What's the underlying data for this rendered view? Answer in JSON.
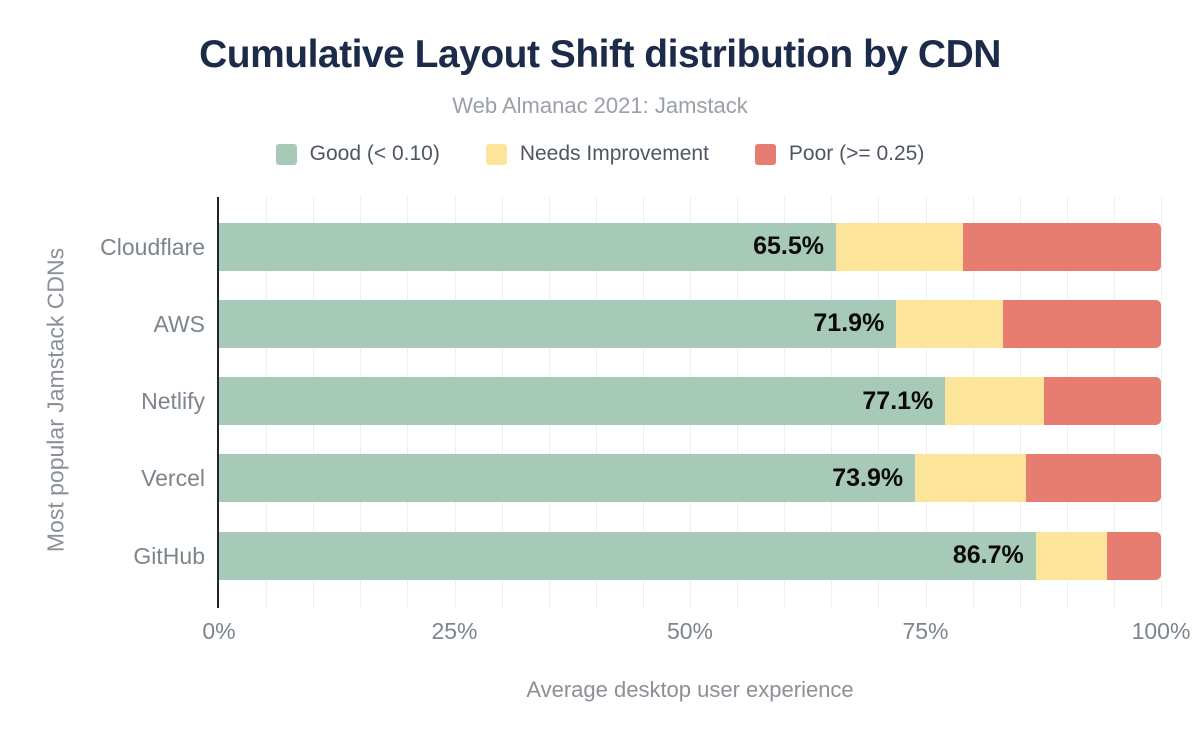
{
  "title": "Cumulative Layout Shift distribution by CDN",
  "subtitle": "Web Almanac 2021: Jamstack",
  "legend": [
    {
      "label": "Good (< 0.10)",
      "color": "#a6c9b8"
    },
    {
      "label": "Needs Improvement",
      "color": "#fce49a"
    },
    {
      "label": "Poor (>= 0.25)",
      "color": "#e77c70"
    }
  ],
  "colors": {
    "good": "#a6c9b8",
    "needs_improvement": "#fce49a",
    "poor": "#e77c70",
    "title": "#1c2b4a",
    "subtitle": "#9aa0a6",
    "axis_text": "#7d858c",
    "axis_line": "#212529",
    "gridline": "#efefef",
    "background": "#ffffff"
  },
  "chart_data": {
    "type": "bar",
    "orientation": "horizontal",
    "stacked": true,
    "title": "Cumulative Layout Shift distribution by CDN",
    "subtitle": "Web Almanac 2021: Jamstack",
    "categories": [
      "Cloudflare",
      "AWS",
      "Netlify",
      "Vercel",
      "GitHub"
    ],
    "series": [
      {
        "name": "Good (< 0.10)",
        "color": "#a6c9b8",
        "values": [
          65.5,
          71.9,
          77.1,
          73.9,
          86.7
        ]
      },
      {
        "name": "Needs Improvement",
        "color": "#fce49a",
        "values": [
          13.5,
          11.3,
          10.5,
          11.8,
          7.6
        ]
      },
      {
        "name": "Poor (>= 0.25)",
        "color": "#e77c70",
        "values": [
          21.0,
          16.8,
          12.4,
          14.3,
          5.7
        ]
      }
    ],
    "bar_labels": [
      "65.5%",
      "71.9%",
      "77.1%",
      "73.9%",
      "86.7%"
    ],
    "xlabel": "Average desktop user experience",
    "ylabel": "Most popular Jamstack CDNs",
    "x_ticks": [
      "0%",
      "25%",
      "50%",
      "75%",
      "100%"
    ],
    "xlim": [
      0,
      100
    ],
    "grid": "vertical minor gridlines every 5%",
    "legend_position": "top"
  }
}
